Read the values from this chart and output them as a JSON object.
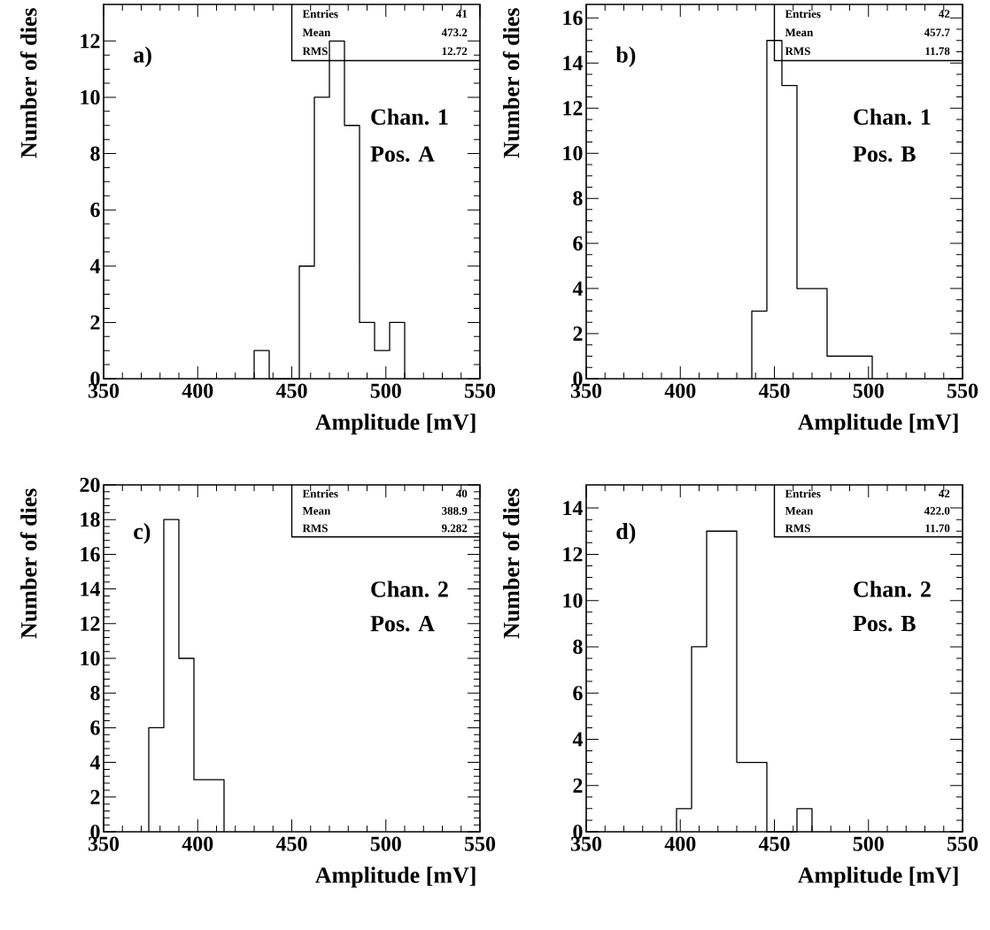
{
  "chart_data": [
    {
      "type": "histogram",
      "bins": [
        430,
        438,
        446,
        454,
        462,
        470,
        478,
        486,
        494,
        502,
        510
      ],
      "values": [
        1,
        0,
        0,
        4,
        10,
        12,
        9,
        2,
        1,
        2
      ],
      "color": "#000000",
      "xlabel": "Amplitude [mV]",
      "ylabel": "Number of dies",
      "xlim": [
        350,
        550
      ],
      "ylim": [
        0,
        13.3
      ],
      "xticks": [
        350,
        400,
        450,
        500,
        550
      ],
      "yticks": [
        0,
        2,
        4,
        6,
        8,
        10,
        12
      ],
      "annotations": [
        "a)",
        "Chan. 1",
        "Pos. A",
        "Entries",
        "41",
        "Mean",
        "473.2",
        "RMS",
        "12.72"
      ]
    },
    {
      "type": "histogram",
      "bins": [
        438,
        446,
        454,
        462,
        470,
        478,
        486,
        494,
        502
      ],
      "values": [
        3,
        15,
        13,
        4,
        4,
        1,
        1,
        1
      ],
      "color": "#000000",
      "xlabel": "Amplitude [mV]",
      "ylabel": "Number of dies",
      "xlim": [
        350,
        550
      ],
      "ylim": [
        0,
        16.6
      ],
      "xticks": [
        350,
        400,
        450,
        500,
        550
      ],
      "yticks": [
        0,
        2,
        4,
        6,
        8,
        10,
        12,
        14,
        16
      ],
      "annotations": [
        "b)",
        "Chan. 1",
        "Pos. B",
        "Entries",
        "42",
        "Mean",
        "457.7",
        "RMS",
        "11.78"
      ]
    },
    {
      "type": "histogram",
      "bins": [
        374,
        382,
        390,
        398,
        406,
        414
      ],
      "values": [
        6,
        18,
        10,
        3,
        3
      ],
      "color": "#000000",
      "xlabel": "Amplitude [mV]",
      "ylabel": "Number of dies",
      "xlim": [
        350,
        550
      ],
      "ylim": [
        0,
        20
      ],
      "xticks": [
        350,
        400,
        450,
        500,
        550
      ],
      "yticks": [
        0,
        2,
        4,
        6,
        8,
        10,
        12,
        14,
        16,
        18,
        20
      ],
      "annotations": [
        "c)",
        "Chan. 2",
        "Pos. A",
        "Entries",
        "40",
        "Mean",
        "388.9",
        "RMS",
        "9.282"
      ]
    },
    {
      "type": "histogram",
      "bins": [
        398,
        406,
        414,
        422,
        430,
        438,
        446,
        454,
        462,
        470
      ],
      "values": [
        1,
        8,
        13,
        13,
        3,
        3,
        0,
        0,
        1
      ],
      "color": "#000000",
      "xlabel": "Amplitude [mV]",
      "ylabel": "Number of dies",
      "xlim": [
        350,
        550
      ],
      "ylim": [
        0,
        15
      ],
      "xticks": [
        350,
        400,
        450,
        500,
        550
      ],
      "yticks": [
        0,
        2,
        4,
        6,
        8,
        10,
        12,
        14
      ],
      "annotations": [
        "d)",
        "Chan. 2",
        "Pos. B",
        "Entries",
        "42",
        "Mean",
        "422.0",
        "RMS",
        "11.70"
      ]
    }
  ]
}
